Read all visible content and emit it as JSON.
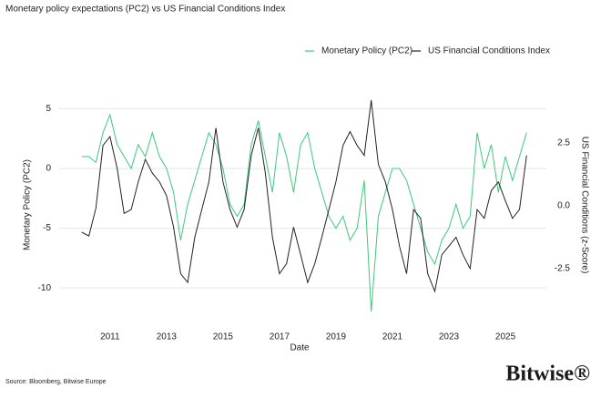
{
  "chart_data": {
    "type": "line",
    "title": "Monetary policy expectations (PC2) vs US Financial Conditions Index",
    "x_label": "Date",
    "y_label": "Monetary Policy (PC2)",
    "y2_label": "US Financial Conditions (z-Score)",
    "source": "Source: Bloomberg, Bitwise Europe",
    "logo": "Bitwise®",
    "x": [
      2010,
      2010.25,
      2010.5,
      2010.75,
      2011,
      2011.25,
      2011.5,
      2011.75,
      2012,
      2012.25,
      2012.5,
      2012.75,
      2013,
      2013.25,
      2013.5,
      2013.75,
      2014,
      2014.25,
      2014.5,
      2014.75,
      2015,
      2015.25,
      2015.5,
      2015.75,
      2016,
      2016.25,
      2016.5,
      2016.75,
      2017,
      2017.25,
      2017.5,
      2017.75,
      2018,
      2018.25,
      2018.5,
      2018.75,
      2019,
      2019.25,
      2019.5,
      2019.75,
      2020,
      2020.25,
      2020.5,
      2020.75,
      2021,
      2021.25,
      2021.5,
      2021.75,
      2022,
      2022.25,
      2022.5,
      2022.75,
      2023,
      2023.25,
      2023.5,
      2023.75,
      2024,
      2024.25,
      2024.5,
      2024.75,
      2025,
      2025.25,
      2025.5,
      2025.75
    ],
    "series": [
      {
        "name": "Monetary Policy (PC2)",
        "color": "#3ec97a",
        "axis": "y",
        "values": [
          1,
          1,
          0.5,
          3,
          4.5,
          2,
          1,
          0,
          2,
          1,
          3,
          1,
          0,
          -2,
          -6,
          -3,
          -1,
          1,
          3,
          2,
          0,
          -3,
          -4,
          -3,
          2,
          4,
          1,
          -2,
          3,
          1,
          -2,
          2,
          3,
          0,
          -2,
          -4,
          -5,
          -4,
          -6,
          -5,
          -1,
          -12,
          -4,
          -2,
          0,
          0,
          -1,
          -3,
          -5,
          -7,
          -8,
          -6,
          -5,
          -3,
          -5,
          -4,
          3,
          0,
          2,
          -2,
          1,
          -1,
          1,
          3
        ]
      },
      {
        "name": "US Financial Conditions Index",
        "color": "#222222",
        "axis": "y2",
        "values": [
          -1.05,
          -1.2,
          -0.1,
          2.4,
          2.75,
          1.5,
          -0.3,
          -0.15,
          0.95,
          1.85,
          1.3,
          0.95,
          0.4,
          -0.85,
          -2.7,
          -3.05,
          -1.25,
          -0.15,
          0.95,
          3.1,
          0.95,
          -0.15,
          -0.85,
          -0.15,
          2.0,
          3.1,
          1.3,
          -1.25,
          -2.7,
          -2.3,
          -0.85,
          -1.95,
          -3.05,
          -2.3,
          -1.25,
          -0.15,
          0.95,
          2.4,
          2.95,
          2.4,
          2.0,
          4.2,
          1.65,
          0.95,
          -0.15,
          -1.6,
          -2.7,
          -0.15,
          -0.5,
          -2.7,
          -3.4,
          -1.95,
          -1.6,
          -1.25,
          -1.95,
          -2.5,
          -0.15,
          -0.5,
          0.6,
          0.95,
          0.2,
          -0.5,
          -0.15,
          2.0
        ]
      }
    ],
    "xlim": [
      2009.2,
      2026.45
    ],
    "xticks": [
      2011,
      2013,
      2015,
      2017,
      2019,
      2021,
      2023,
      2025
    ],
    "ylim": [
      -12.2,
      6.1
    ],
    "yticks": [
      5,
      0,
      -5,
      -10
    ],
    "y2lim": [
      -4.31,
      4.38
    ],
    "y2ticks": [
      2.5,
      {
        "value": 0,
        "label": "0.0"
      },
      -2.5
    ],
    "grid": true
  }
}
